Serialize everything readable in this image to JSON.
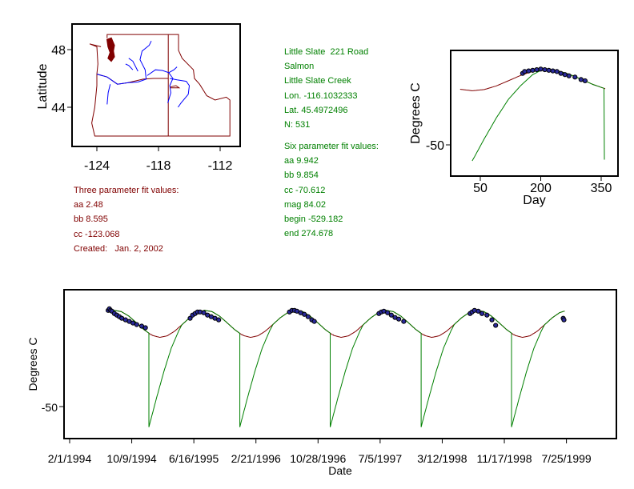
{
  "station": {
    "lines": [
      "Little Slate  221 Road",
      "Salmon",
      "Little Slate Creek",
      "Lon. -116.1032333",
      "Lat. 45.4972496",
      "N: 531"
    ],
    "six_title": "Six parameter fit values:",
    "six_values": [
      "aa 9.942",
      "bb 9.854",
      "cc -70.612",
      "mag 84.02",
      "begin -529.182",
      "end 274.678"
    ]
  },
  "three_fit": {
    "title": "Three parameter fit values:",
    "values": [
      "aa 2.48",
      "bb 8.595",
      "cc -123.068"
    ],
    "created": "Created:   Jan. 2, 2002"
  },
  "colors": {
    "three_fit": "#800000",
    "six_fit": "#008000",
    "observed": "#00008b",
    "river": "#0000ff",
    "border": "#800000",
    "text_green": "#008000",
    "text_red": "#800000"
  },
  "chart_data": [
    {
      "id": "map",
      "type": "line",
      "title": "",
      "xlabel": "",
      "ylabel": "Latitude",
      "xlim": [
        -131,
        -110.5
      ],
      "ylim": [
        41.3,
        49.8
      ],
      "xticks": [
        -124,
        -118,
        -112
      ],
      "xtick_labels": [
        "-124",
        "-118",
        "-112"
      ],
      "yticks": [
        48,
        44
      ],
      "ytick_labels": [
        "48",
        "44"
      ],
      "borders": [
        [
          [
            -123.0,
            48.8
          ],
          [
            -123.0,
            49.05
          ],
          [
            -116.05,
            49.05
          ],
          [
            -116.05,
            47.95
          ],
          [
            -115.7,
            47.4
          ],
          [
            -114.6,
            46.6
          ],
          [
            -114.5,
            46.0
          ],
          [
            -114.0,
            45.6
          ],
          [
            -113.3,
            44.8
          ],
          [
            -112.5,
            44.5
          ],
          [
            -111.4,
            44.7
          ],
          [
            -111.05,
            44.5
          ],
          [
            -111.05,
            42.0
          ],
          [
            -117.05,
            42.0
          ],
          [
            -124.2,
            42.0
          ],
          [
            -124.5,
            42.9
          ],
          [
            -124.2,
            44.0
          ],
          [
            -124.0,
            45.5
          ],
          [
            -124.0,
            46.3
          ],
          [
            -123.9,
            47.0
          ],
          [
            -124.0,
            48.2
          ],
          [
            -124.7,
            48.4
          ],
          [
            -123.6,
            48.2
          ]
        ],
        [
          [
            -124.0,
            46.3
          ],
          [
            -123.0,
            46.1
          ],
          [
            -122.0,
            45.6
          ],
          [
            -121.0,
            45.7
          ],
          [
            -119.5,
            45.95
          ],
          [
            -118.5,
            46.0
          ],
          [
            -117.05,
            46.0
          ]
        ],
        [
          [
            -117.05,
            49.05
          ],
          [
            -117.05,
            42.0
          ]
        ],
        [
          [
            -116.9,
            45.4
          ],
          [
            -116.3,
            45.5
          ],
          [
            -116.0,
            45.35
          ],
          [
            -116.9,
            45.35
          ]
        ]
      ],
      "puget_sound": [
        [
          -123.0,
          48.7
        ],
        [
          -122.6,
          48.8
        ],
        [
          -122.3,
          48.3
        ],
        [
          -122.4,
          47.9
        ],
        [
          -122.3,
          47.5
        ],
        [
          -122.6,
          47.2
        ],
        [
          -122.9,
          47.4
        ],
        [
          -122.7,
          47.8
        ],
        [
          -122.9,
          48.2
        ]
      ],
      "rivers": [
        [
          [
            -124.0,
            46.3
          ],
          [
            -123.0,
            46.1
          ],
          [
            -122.0,
            45.6
          ],
          [
            -121.0,
            45.7
          ],
          [
            -120.0,
            45.75
          ],
          [
            -119.2,
            45.95
          ],
          [
            -119.3,
            46.6
          ],
          [
            -119.8,
            47.3
          ],
          [
            -119.6,
            47.9
          ],
          [
            -118.9,
            48.3
          ],
          [
            -118.7,
            48.6
          ]
        ],
        [
          [
            -119.1,
            46.2
          ],
          [
            -118.3,
            46.6
          ],
          [
            -117.6,
            46.55
          ],
          [
            -117.0,
            46.4
          ],
          [
            -116.6,
            46.0
          ],
          [
            -116.9,
            45.5
          ],
          [
            -116.8,
            45.0
          ],
          [
            -117.1,
            44.3
          ]
        ],
        [
          [
            -116.9,
            46.0
          ],
          [
            -116.2,
            45.9
          ],
          [
            -115.3,
            45.8
          ],
          [
            -115.0,
            45.5
          ],
          [
            -115.1,
            44.9
          ],
          [
            -115.8,
            44.3
          ],
          [
            -116.1,
            44.0
          ]
        ],
        [
          [
            -122.7,
            45.6
          ],
          [
            -122.9,
            45.0
          ],
          [
            -123.0,
            44.2
          ]
        ],
        [
          [
            -120.5,
            46.6
          ],
          [
            -120.9,
            46.9
          ],
          [
            -121.2,
            47.0
          ]
        ],
        [
          [
            -120.0,
            46.5
          ],
          [
            -120.5,
            47.2
          ],
          [
            -120.9,
            47.4
          ]
        ],
        [
          [
            -117.0,
            46.4
          ],
          [
            -116.5,
            46.6
          ],
          [
            -116.2,
            46.8
          ]
        ]
      ]
    },
    {
      "id": "annual",
      "type": "line",
      "title": "",
      "xlabel": "Day",
      "ylabel": "Degrees C",
      "xlim": [
        -24,
        394
      ],
      "ylim": [
        -75,
        26
      ],
      "xticks": [
        50,
        200,
        350
      ],
      "xtick_labels": [
        "50",
        "200",
        "350"
      ],
      "yticks": [
        -50
      ],
      "ytick_labels": [
        "-50"
      ],
      "three_param_curve": {
        "x": [
          0,
          30,
          60,
          90,
          120,
          150,
          180,
          210,
          240,
          270,
          300,
          330,
          360
        ],
        "y": [
          -4.87,
          -6.11,
          -5.12,
          -2.14,
          2.04,
          6.33,
          9.62,
          11.05,
          10.24,
          7.41,
          3.29,
          -1.03,
          -4.46
        ]
      },
      "six_param_rise": {
        "t": [
          0,
          30,
          60,
          90,
          120,
          150,
          180,
          210
        ],
        "y": [
          -63,
          -45,
          -28,
          -13,
          -2,
          7,
          12,
          20
        ]
      },
      "six_param_start_day": 30,
      "six_param_drop_day": 358,
      "observed": [
        [
          155,
          8
        ],
        [
          160,
          9.5
        ],
        [
          170,
          10
        ],
        [
          180,
          10.5
        ],
        [
          190,
          11
        ],
        [
          200,
          11.5
        ],
        [
          210,
          11
        ],
        [
          220,
          10.5
        ],
        [
          230,
          10
        ],
        [
          240,
          9.5
        ],
        [
          250,
          8
        ],
        [
          260,
          7
        ],
        [
          270,
          6
        ],
        [
          285,
          5
        ],
        [
          300,
          3
        ],
        [
          310,
          2
        ]
      ]
    },
    {
      "id": "timeseries",
      "type": "line",
      "title": "",
      "xlabel": "Date",
      "ylabel": "Degrees C",
      "x_units": "days since 2/1/1994",
      "xlim": [
        -23,
        2203
      ],
      "ylim": [
        -70,
        24
      ],
      "xticks": [
        0,
        250,
        500,
        750,
        1000,
        1250,
        1500,
        1750,
        2000
      ],
      "xtick_labels": [
        "2/1/1994",
        "10/9/1994",
        "6/16/1995",
        "2/21/1996",
        "10/28/1996",
        "7/5/1997",
        "3/12/1998",
        "11/17/1998",
        "7/25/1999"
      ],
      "yticks": [
        -50
      ],
      "ytick_labels": [
        "-50"
      ],
      "start_day_of_year": 32,
      "curve_range": [
        155,
        1994
      ],
      "drop_day_of_year": 351,
      "observed": [
        [
          155,
          11
        ],
        [
          160,
          12
        ],
        [
          165,
          11
        ],
        [
          170,
          10.5
        ],
        [
          180,
          9
        ],
        [
          190,
          8
        ],
        [
          200,
          7
        ],
        [
          210,
          6
        ],
        [
          225,
          5
        ],
        [
          240,
          4
        ],
        [
          255,
          3
        ],
        [
          270,
          2
        ],
        [
          290,
          1
        ],
        [
          305,
          0
        ],
        [
          485,
          6
        ],
        [
          495,
          8
        ],
        [
          505,
          9
        ],
        [
          515,
          10
        ],
        [
          525,
          10
        ],
        [
          540,
          9.5
        ],
        [
          555,
          8
        ],
        [
          570,
          7
        ],
        [
          585,
          6
        ],
        [
          600,
          5
        ],
        [
          885,
          10
        ],
        [
          895,
          11
        ],
        [
          905,
          11
        ],
        [
          915,
          10.5
        ],
        [
          930,
          9.5
        ],
        [
          945,
          8.5
        ],
        [
          960,
          7
        ],
        [
          975,
          5
        ],
        [
          985,
          4
        ],
        [
          1245,
          9
        ],
        [
          1255,
          10
        ],
        [
          1265,
          10.5
        ],
        [
          1280,
          9.5
        ],
        [
          1295,
          8
        ],
        [
          1310,
          6.5
        ],
        [
          1325,
          5.5
        ],
        [
          1345,
          4
        ],
        [
          1612,
          9
        ],
        [
          1620,
          10
        ],
        [
          1630,
          11
        ],
        [
          1645,
          10.5
        ],
        [
          1660,
          9
        ],
        [
          1680,
          8
        ],
        [
          1700,
          5
        ],
        [
          1715,
          1.5
        ],
        [
          1987,
          6
        ],
        [
          1990,
          5
        ]
      ]
    }
  ]
}
